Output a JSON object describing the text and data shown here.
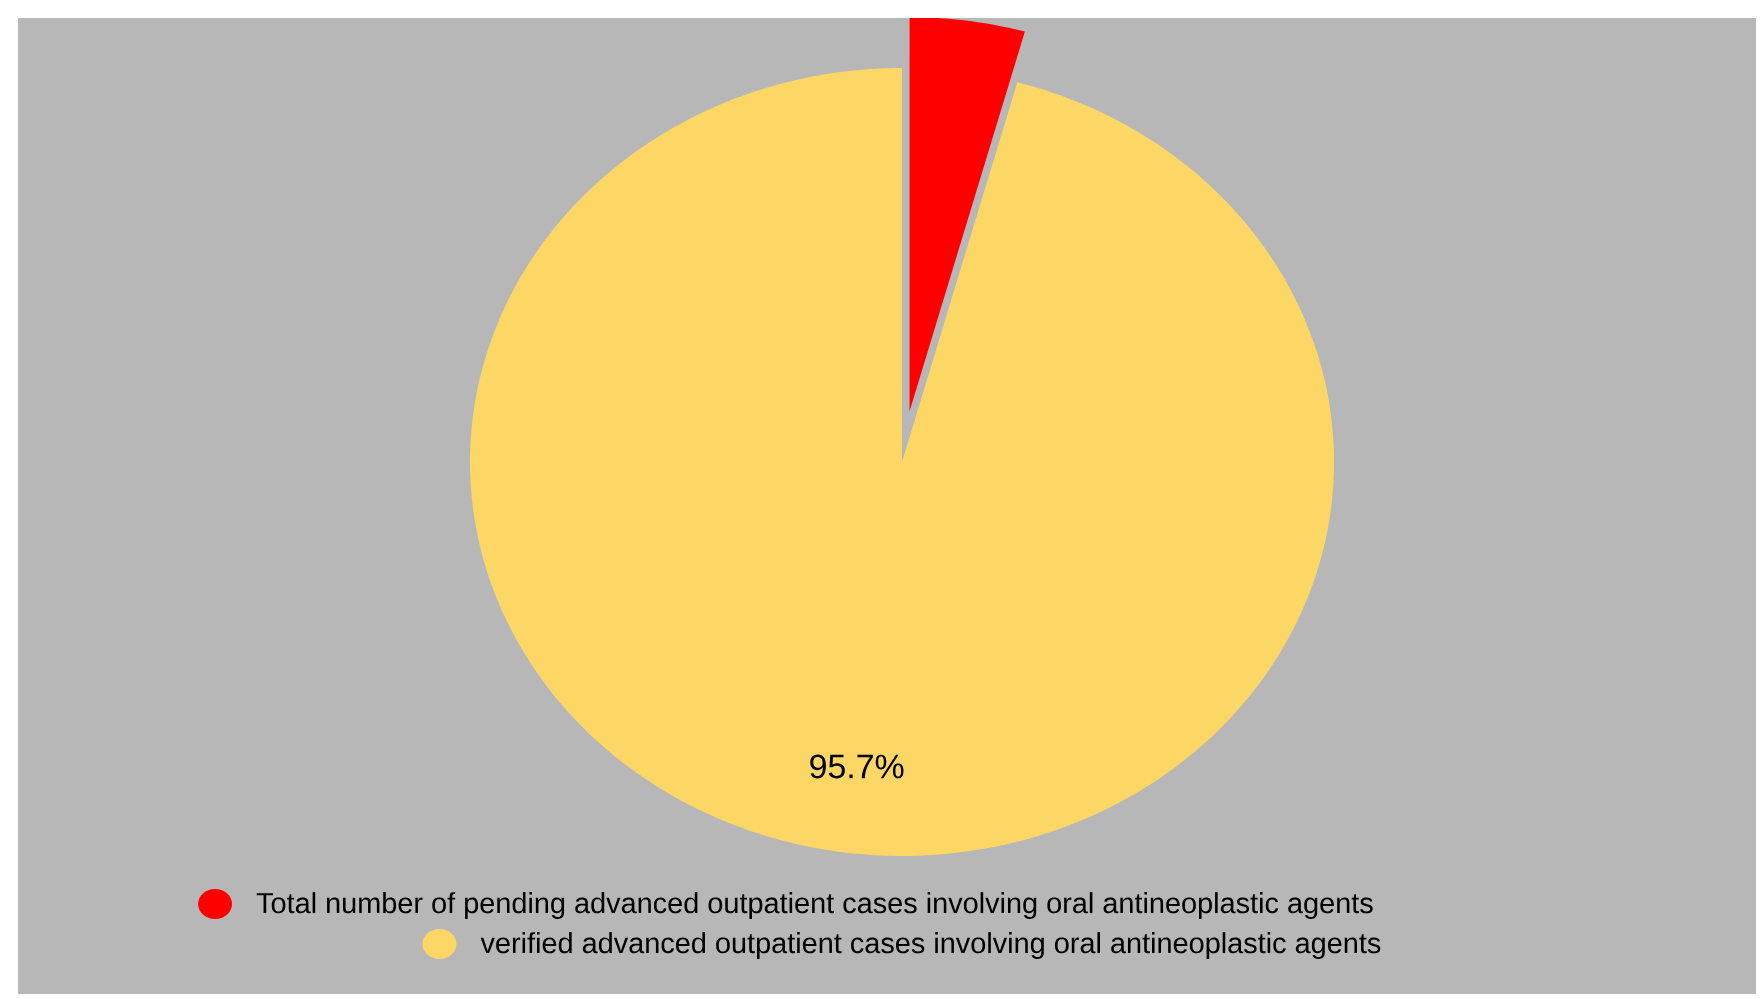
{
  "chart_data": {
    "type": "pie",
    "categories": [
      "Total number of pending advanced outpatient cases involving oral antineoplastic agents",
      "verified advanced outpatient cases involving oral antineoplastic agents"
    ],
    "values": [
      4.3,
      95.7
    ],
    "colors": [
      "#ff0000",
      "#fdd766"
    ],
    "value_labels": [
      null,
      "95.7%"
    ],
    "legend": "bottom"
  }
}
